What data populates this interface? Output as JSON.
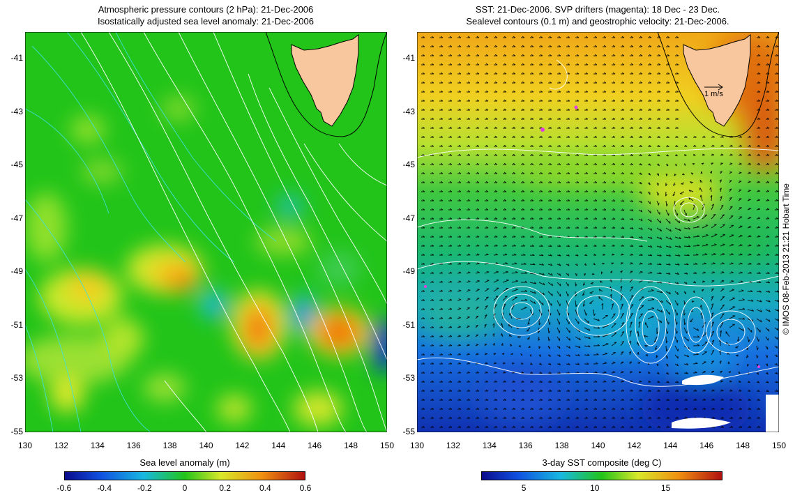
{
  "left_map": {
    "title_line1": "Atmospheric pressure contours (2 hPa): 21-Dec-2006",
    "title_line2": "Isostatically adjusted sea level anomaly: 21-Dec-2006",
    "xticks": [
      "130",
      "132",
      "134",
      "136",
      "138",
      "140",
      "142",
      "144",
      "146",
      "148",
      "150"
    ],
    "yticks": [
      "-41",
      "-43",
      "-45",
      "-47",
      "-49",
      "-51",
      "-53",
      "-55"
    ],
    "colorbar": {
      "title": "Sea level anomaly (m)",
      "ticks": [
        "-0.6",
        "-0.4",
        "-0.2",
        "0",
        "0.2",
        "0.4",
        "0.6"
      ],
      "range": [
        -0.6,
        0.6
      ]
    }
  },
  "right_map": {
    "title_line1": "SST: 21-Dec-2006. SVP drifters (magenta): 18 Dec - 23 Dec.",
    "title_line2": "Sealevel contours (0.1 m) and geostrophic velocity: 21-Dec-2006.",
    "xticks": [
      "130",
      "132",
      "134",
      "136",
      "138",
      "140",
      "142",
      "144",
      "146",
      "148",
      "150"
    ],
    "yticks": [
      "-41",
      "-43",
      "-45",
      "-47",
      "-49",
      "-51",
      "-53",
      "-55"
    ],
    "scale_arrow_label": "1 m/s",
    "colorbar": {
      "title": "3-day SST composite (deg C)",
      "ticks": [
        "5",
        "10",
        "15"
      ],
      "range": [
        2,
        19
      ]
    }
  },
  "credit": "© IMOS 08-Feb-2013 21:21 Hobart Time",
  "colors": {
    "land": "#f9c79d",
    "pressure_contour": "#ffffff",
    "sla_contour": "#40e0e0",
    "drifter": "#e040e0",
    "ocean_green": "#22c41a"
  }
}
